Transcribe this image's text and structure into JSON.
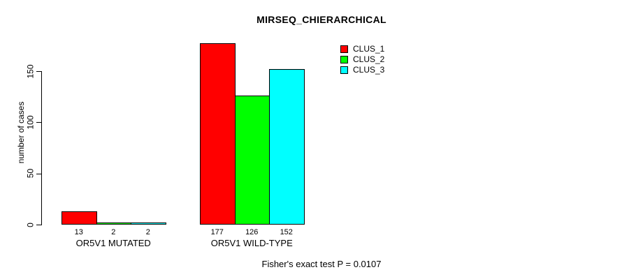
{
  "title": "MIRSEQ_CHIERARCHICAL",
  "footer": "Fisher's exact test P = 0.0107",
  "y_axis": {
    "label": "number of cases",
    "ticks": [
      0,
      50,
      100,
      150
    ]
  },
  "legend": {
    "entries": [
      {
        "label": "CLUS_1",
        "color": "#ff0000"
      },
      {
        "label": "CLUS_2",
        "color": "#00ff00"
      },
      {
        "label": "CLUS_3",
        "color": "#00ffff"
      }
    ]
  },
  "chart_data": {
    "type": "bar",
    "grouped": true,
    "title": "MIRSEQ_CHIERARCHICAL",
    "xlabel": "",
    "ylabel": "number of cases",
    "categories": [
      "OR5V1 MUTATED",
      "OR5V1 WILD-TYPE"
    ],
    "series": [
      {
        "name": "CLUS_1",
        "color": "#ff0000",
        "values": [
          13,
          177
        ]
      },
      {
        "name": "CLUS_2",
        "color": "#00ff00",
        "values": [
          2,
          126
        ]
      },
      {
        "name": "CLUS_3",
        "color": "#00ffff",
        "values": [
          2,
          152
        ]
      }
    ],
    "bar_value_labels": [
      [
        13,
        2,
        2
      ],
      [
        177,
        126,
        152
      ]
    ],
    "yticks": [
      0,
      50,
      100,
      150
    ],
    "ylim": [
      0,
      180
    ],
    "grid": false,
    "legend_position": "upper-right-inside",
    "annotation": "Fisher's exact test P = 0.0107",
    "bar_border_color": "#000000"
  }
}
